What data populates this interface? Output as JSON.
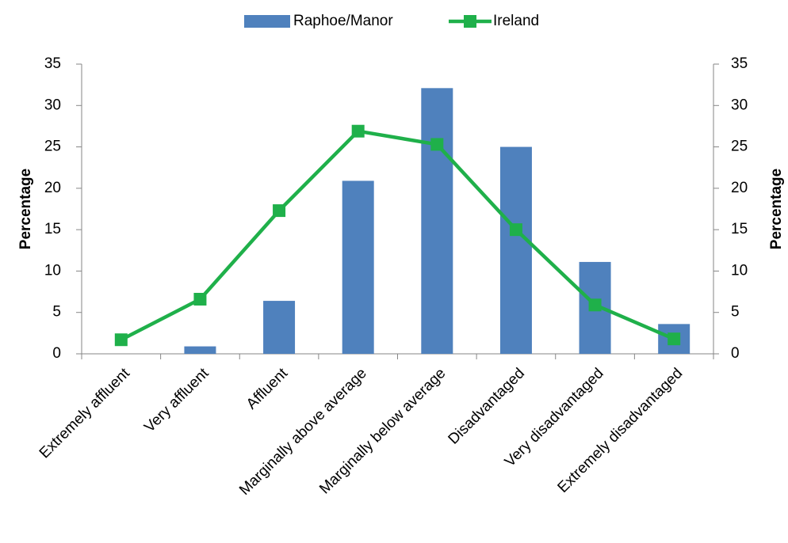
{
  "chart_data": {
    "type": "bar_line",
    "categories": [
      "Extremely affluent",
      "Very affluent",
      "Affluent",
      "Marginally above average",
      "Marginally below average",
      "Disadvantaged",
      "Very disadvantaged",
      "Extremely disadvantaged"
    ],
    "series": [
      {
        "name": "Raphoe/Manor",
        "type": "bar",
        "color": "#4f81bd",
        "values": [
          0,
          0.9,
          6.4,
          20.9,
          32.1,
          25.0,
          11.1,
          3.6
        ]
      },
      {
        "name": "Ireland",
        "type": "line",
        "axis": "y2",
        "color": "#1fb04a",
        "values": [
          1.7,
          6.6,
          17.3,
          26.9,
          25.3,
          15.0,
          5.9,
          1.8
        ]
      }
    ],
    "ylabel": "Percentage",
    "y2label": "Percentage",
    "ylim": [
      0,
      35
    ],
    "yticks": [
      0,
      5,
      10,
      15,
      20,
      25,
      30,
      35
    ],
    "y2lim": [
      0,
      35
    ],
    "y2ticks": [
      0,
      5,
      10,
      15,
      20,
      25,
      30,
      35
    ],
    "legend": "top"
  }
}
